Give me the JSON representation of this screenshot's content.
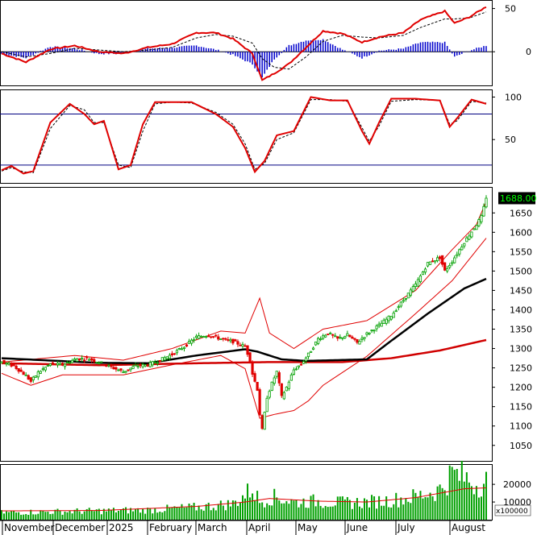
{
  "chart_data": {
    "type": "candlestick",
    "x_axis": {
      "month_labels": [
        "November",
        "December",
        "2025",
        "February",
        "March",
        "April",
        "May",
        "June",
        "July",
        "August"
      ],
      "n_bars": 200
    },
    "colors": {
      "bullish": "#00a000",
      "bearish": "#e00000",
      "macd_line": "#e00000",
      "signal_line": "#000000",
      "histogram": "#0000cc",
      "sma_long": "#d00000",
      "sma_mid": "#000000",
      "bollinger": "#e00000",
      "volume_bar": "#00a000",
      "volume_ma": "#e00000",
      "last_price_bg": "#000000",
      "last_price_fg": "#00ff00",
      "guide_line": "#000080"
    },
    "panels": {
      "macd": {
        "yticks": [
          "50",
          "0"
        ],
        "ylim": [
          -38,
          58
        ],
        "macd_keys": [
          [
            0,
            -2
          ],
          [
            10,
            -12
          ],
          [
            20,
            3
          ],
          [
            30,
            7
          ],
          [
            40,
            0
          ],
          [
            50,
            -2
          ],
          [
            60,
            5
          ],
          [
            70,
            9
          ],
          [
            80,
            22
          ],
          [
            88,
            22
          ],
          [
            95,
            15
          ],
          [
            103,
            -2
          ],
          [
            107,
            -33
          ],
          [
            112,
            -25
          ],
          [
            118,
            -14
          ],
          [
            125,
            5
          ],
          [
            132,
            24
          ],
          [
            140,
            21
          ],
          [
            148,
            11
          ],
          [
            155,
            17
          ],
          [
            165,
            22
          ],
          [
            172,
            37
          ],
          [
            182,
            47
          ],
          [
            186,
            33
          ],
          [
            192,
            40
          ],
          [
            199,
            52
          ]
        ],
        "signal_keys": [
          [
            0,
            0
          ],
          [
            10,
            -6
          ],
          [
            20,
            -2
          ],
          [
            30,
            4
          ],
          [
            40,
            2
          ],
          [
            50,
            0
          ],
          [
            60,
            2
          ],
          [
            70,
            5
          ],
          [
            80,
            16
          ],
          [
            88,
            20
          ],
          [
            95,
            18
          ],
          [
            103,
            10
          ],
          [
            107,
            -8
          ],
          [
            112,
            -18
          ],
          [
            118,
            -20
          ],
          [
            125,
            -6
          ],
          [
            132,
            12
          ],
          [
            140,
            19
          ],
          [
            148,
            17
          ],
          [
            155,
            16
          ],
          [
            165,
            19
          ],
          [
            172,
            28
          ],
          [
            182,
            38
          ],
          [
            186,
            38
          ],
          [
            192,
            39
          ],
          [
            199,
            46
          ]
        ]
      },
      "stochastic": {
        "yticks": [
          "100",
          "50"
        ],
        "ylim": [
          0,
          108
        ],
        "guides": [
          80,
          20
        ],
        "k_keys": [
          [
            0,
            14
          ],
          [
            4,
            19
          ],
          [
            9,
            10
          ],
          [
            13,
            13
          ],
          [
            20,
            70
          ],
          [
            28,
            92
          ],
          [
            34,
            80
          ],
          [
            38,
            68
          ],
          [
            42,
            72
          ],
          [
            48,
            15
          ],
          [
            53,
            20
          ],
          [
            58,
            68
          ],
          [
            63,
            94
          ],
          [
            70,
            94
          ],
          [
            78,
            94
          ],
          [
            88,
            80
          ],
          [
            95,
            65
          ],
          [
            100,
            40
          ],
          [
            104,
            12
          ],
          [
            108,
            25
          ],
          [
            113,
            55
          ],
          [
            120,
            60
          ],
          [
            127,
            100
          ],
          [
            135,
            96
          ],
          [
            142,
            96
          ],
          [
            148,
            60
          ],
          [
            151,
            45
          ],
          [
            155,
            70
          ],
          [
            160,
            98
          ],
          [
            170,
            98
          ],
          [
            180,
            96
          ],
          [
            184,
            65
          ],
          [
            187,
            75
          ],
          [
            193,
            97
          ],
          [
            199,
            92
          ]
        ],
        "d_keys": [
          [
            0,
            13
          ],
          [
            4,
            17
          ],
          [
            9,
            12
          ],
          [
            13,
            11
          ],
          [
            20,
            63
          ],
          [
            28,
            90
          ],
          [
            34,
            85
          ],
          [
            38,
            70
          ],
          [
            42,
            70
          ],
          [
            48,
            20
          ],
          [
            53,
            17
          ],
          [
            58,
            60
          ],
          [
            63,
            92
          ],
          [
            70,
            94
          ],
          [
            78,
            93
          ],
          [
            88,
            82
          ],
          [
            95,
            68
          ],
          [
            100,
            45
          ],
          [
            104,
            15
          ],
          [
            108,
            22
          ],
          [
            113,
            50
          ],
          [
            120,
            58
          ],
          [
            127,
            97
          ],
          [
            135,
            97
          ],
          [
            142,
            95
          ],
          [
            148,
            64
          ],
          [
            151,
            48
          ],
          [
            155,
            66
          ],
          [
            160,
            95
          ],
          [
            170,
            97
          ],
          [
            180,
            96
          ],
          [
            184,
            68
          ],
          [
            187,
            72
          ],
          [
            193,
            95
          ],
          [
            199,
            93
          ]
        ]
      },
      "price": {
        "yticks": [
          "1650",
          "1600",
          "1550",
          "1500",
          "1450",
          "1400",
          "1350",
          "1300",
          "1250",
          "1200",
          "1150",
          "1100",
          "1050"
        ],
        "ylim": [
          1010,
          1715
        ],
        "last_price": "1688.000",
        "close_keys": [
          [
            0,
            1265
          ],
          [
            5,
            1255
          ],
          [
            10,
            1230
          ],
          [
            12,
            1215
          ],
          [
            15,
            1238
          ],
          [
            20,
            1260
          ],
          [
            25,
            1258
          ],
          [
            30,
            1272
          ],
          [
            35,
            1275
          ],
          [
            40,
            1265
          ],
          [
            45,
            1252
          ],
          [
            50,
            1240
          ],
          [
            55,
            1255
          ],
          [
            60,
            1258
          ],
          [
            65,
            1270
          ],
          [
            70,
            1285
          ],
          [
            75,
            1305
          ],
          [
            80,
            1330
          ],
          [
            85,
            1335
          ],
          [
            90,
            1325
          ],
          [
            95,
            1318
          ],
          [
            100,
            1305
          ],
          [
            102,
            1270
          ],
          [
            103,
            1235
          ],
          [
            105,
            1195
          ],
          [
            106,
            1130
          ],
          [
            107,
            1090
          ],
          [
            109,
            1175
          ],
          [
            111,
            1210
          ],
          [
            113,
            1240
          ],
          [
            115,
            1175
          ],
          [
            117,
            1200
          ],
          [
            120,
            1245
          ],
          [
            123,
            1260
          ],
          [
            126,
            1285
          ],
          [
            130,
            1325
          ],
          [
            134,
            1340
          ],
          [
            138,
            1325
          ],
          [
            142,
            1335
          ],
          [
            146,
            1315
          ],
          [
            150,
            1338
          ],
          [
            155,
            1360
          ],
          [
            160,
            1385
          ],
          [
            165,
            1425
          ],
          [
            170,
            1465
          ],
          [
            175,
            1520
          ],
          [
            180,
            1535
          ],
          [
            182,
            1500
          ],
          [
            185,
            1525
          ],
          [
            190,
            1575
          ],
          [
            195,
            1620
          ],
          [
            197,
            1640
          ],
          [
            199,
            1688
          ]
        ],
        "bb_upper_keys": [
          [
            0,
            1265
          ],
          [
            30,
            1282
          ],
          [
            50,
            1270
          ],
          [
            70,
            1300
          ],
          [
            90,
            1345
          ],
          [
            100,
            1340
          ],
          [
            106,
            1430
          ],
          [
            110,
            1340
          ],
          [
            120,
            1300
          ],
          [
            132,
            1350
          ],
          [
            150,
            1372
          ],
          [
            170,
            1450
          ],
          [
            185,
            1555
          ],
          [
            195,
            1620
          ],
          [
            199,
            1680
          ]
        ],
        "bb_lower_keys": [
          [
            0,
            1236
          ],
          [
            12,
            1205
          ],
          [
            25,
            1232
          ],
          [
            50,
            1232
          ],
          [
            70,
            1258
          ],
          [
            90,
            1282
          ],
          [
            100,
            1248
          ],
          [
            106,
            1120
          ],
          [
            112,
            1130
          ],
          [
            120,
            1140
          ],
          [
            126,
            1165
          ],
          [
            132,
            1205
          ],
          [
            150,
            1280
          ],
          [
            170,
            1390
          ],
          [
            185,
            1475
          ],
          [
            199,
            1585
          ]
        ],
        "sma_mid_keys": [
          [
            0,
            1275
          ],
          [
            40,
            1263
          ],
          [
            60,
            1262
          ],
          [
            80,
            1282
          ],
          [
            100,
            1298
          ],
          [
            105,
            1292
          ],
          [
            115,
            1272
          ],
          [
            125,
            1268
          ],
          [
            150,
            1272
          ],
          [
            160,
            1320
          ],
          [
            175,
            1390
          ],
          [
            190,
            1455
          ],
          [
            199,
            1480
          ]
        ],
        "sma_long_keys": [
          [
            0,
            1262
          ],
          [
            40,
            1257
          ],
          [
            80,
            1262
          ],
          [
            110,
            1265
          ],
          [
            140,
            1265
          ],
          [
            160,
            1275
          ],
          [
            180,
            1295
          ],
          [
            199,
            1322
          ]
        ]
      },
      "volume": {
        "yticks": [
          "20000",
          "10000"
        ],
        "ylim": [
          0,
          31000
        ],
        "scale_label": "x100000",
        "volume_keys": [
          [
            0,
            4000
          ],
          [
            20,
            4500
          ],
          [
            40,
            5000
          ],
          [
            60,
            5500
          ],
          [
            80,
            7000
          ],
          [
            95,
            9000
          ],
          [
            100,
            14000
          ],
          [
            103,
            18000
          ],
          [
            106,
            10000
          ],
          [
            110,
            13000
          ],
          [
            115,
            12000
          ],
          [
            120,
            10000
          ],
          [
            130,
            10500
          ],
          [
            140,
            9500
          ],
          [
            150,
            10000
          ],
          [
            160,
            11000
          ],
          [
            170,
            13000
          ],
          [
            180,
            17000
          ],
          [
            185,
            26000
          ],
          [
            190,
            24000
          ],
          [
            195,
            20000
          ],
          [
            199,
            22000
          ]
        ],
        "volume_ma_keys": [
          [
            0,
            5000
          ],
          [
            40,
            5200
          ],
          [
            80,
            7500
          ],
          [
            100,
            10000
          ],
          [
            110,
            12000
          ],
          [
            130,
            10500
          ],
          [
            150,
            10000
          ],
          [
            170,
            12500
          ],
          [
            190,
            17500
          ],
          [
            199,
            18000
          ]
        ]
      }
    }
  }
}
